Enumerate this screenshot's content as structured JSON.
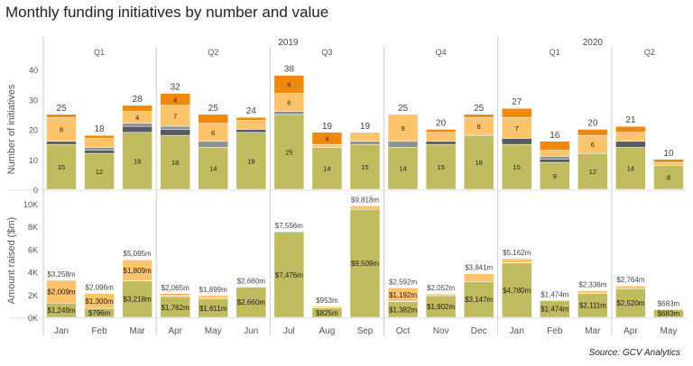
{
  "chart_data": {
    "type": "bar",
    "title": "Monthly funding initiatives by number and value",
    "source": "Source: GCV Analytics",
    "colors": [
      "#bfbb5e",
      "#555a63",
      "#8a8f98",
      "#fdc46b",
      "#f0880c"
    ],
    "years": [
      {
        "label": "2019",
        "months": 12
      },
      {
        "label": "2020",
        "months": 5
      }
    ],
    "quarters": [
      {
        "label": "Q1",
        "months": 3
      },
      {
        "label": "Q2",
        "months": 3
      },
      {
        "label": "Q3",
        "months": 3
      },
      {
        "label": "Q4",
        "months": 3
      },
      {
        "label": "Q1",
        "months": 3
      },
      {
        "label": "Q2",
        "months": 2
      }
    ],
    "categories": [
      "Jan",
      "Feb",
      "Mar",
      "Apr",
      "May",
      "Jun",
      "Jul",
      "Aug",
      "Sep",
      "Oct",
      "Nov",
      "Dec",
      "Jan",
      "Feb",
      "Mar",
      "Apr",
      "May"
    ],
    "panels": [
      {
        "ylabel": "Number of initiatives",
        "ylim": [
          0,
          45
        ],
        "ticks": [
          0,
          10,
          20,
          30,
          40
        ],
        "tick_labels": [
          "0",
          "10",
          "20",
          "30",
          "40"
        ],
        "totals": [
          25,
          18,
          28,
          32,
          25,
          24,
          38,
          19,
          19,
          25,
          20,
          25,
          27,
          16,
          20,
          21,
          10
        ],
        "total_labels": [
          "25",
          "18",
          "28",
          "32",
          "25",
          "24",
          "38",
          "19",
          "19",
          "25",
          "20",
          "25",
          "27",
          "16",
          "20",
          "21",
          "10"
        ],
        "stacks": [
          [
            15,
            1,
            0,
            8,
            1
          ],
          [
            12,
            1,
            1,
            3,
            1
          ],
          [
            19,
            2,
            1,
            4,
            2
          ],
          [
            18,
            2,
            1,
            7,
            4
          ],
          [
            14,
            0,
            2,
            6,
            3
          ],
          [
            19,
            1,
            0,
            3,
            1
          ],
          [
            25,
            0,
            1,
            6,
            6
          ],
          [
            14,
            0,
            0,
            1,
            4
          ],
          [
            15,
            0,
            1,
            3,
            0
          ],
          [
            14,
            0,
            2,
            9,
            0
          ],
          [
            15,
            1,
            0,
            3,
            1
          ],
          [
            18,
            0,
            0,
            6,
            1
          ],
          [
            15,
            2,
            0,
            7,
            3
          ],
          [
            9,
            1,
            1,
            2,
            3
          ],
          [
            12,
            0,
            0,
            6,
            2
          ],
          [
            14,
            2,
            0,
            3,
            2
          ],
          [
            8,
            0,
            0,
            1,
            1
          ]
        ],
        "segment_labels": [
          [
            "15",
            null,
            null,
            "8",
            null
          ],
          [
            "12",
            null,
            null,
            null,
            null
          ],
          [
            "19",
            null,
            null,
            "4",
            null
          ],
          [
            "18",
            null,
            null,
            "7",
            "4"
          ],
          [
            "14",
            null,
            null,
            "6",
            null
          ],
          [
            "19",
            null,
            null,
            null,
            null
          ],
          [
            "25",
            null,
            null,
            "6",
            "6"
          ],
          [
            "14",
            null,
            null,
            null,
            "4"
          ],
          [
            "15",
            null,
            null,
            null,
            null
          ],
          [
            "14",
            null,
            null,
            "9",
            null
          ],
          [
            "15",
            null,
            null,
            null,
            null
          ],
          [
            "18",
            null,
            null,
            "6",
            null
          ],
          [
            "15",
            null,
            null,
            "7",
            null
          ],
          [
            "9",
            null,
            null,
            null,
            null
          ],
          [
            "12",
            null,
            null,
            "6",
            null
          ],
          [
            "14",
            null,
            null,
            null,
            null
          ],
          [
            "8",
            null,
            null,
            null,
            null
          ]
        ]
      },
      {
        "ylabel": "Amount raised ($m)",
        "ylim": [
          0,
          11000
        ],
        "ticks": [
          0,
          2000,
          4000,
          6000,
          8000,
          10000
        ],
        "tick_labels": [
          "0K",
          "2K",
          "4K",
          "6K",
          "8K",
          "10K"
        ],
        "totals": [
          3258,
          2096,
          5095,
          2065,
          1899,
          2660,
          7556,
          953,
          9818,
          2592,
          2052,
          3841,
          5162,
          1474,
          2336,
          2764,
          683
        ],
        "total_labels": [
          "$3,258m",
          "$2,096m",
          "$5,095m",
          "$2,065m",
          "$1,899m",
          "$2,660m",
          "$7,556m",
          "$953m",
          "$9,818m",
          "$2,592m",
          "$2,052m",
          "$3,841m",
          "$5,162m",
          "$1,474m",
          "$2,336m",
          "$2,764m",
          "$683m"
        ],
        "stacks": [
          [
            1249,
            0,
            0,
            2009,
            0
          ],
          [
            796,
            0,
            0,
            1300,
            0
          ],
          [
            3218,
            0,
            20,
            1809,
            48
          ],
          [
            1762,
            0,
            100,
            100,
            103
          ],
          [
            1611,
            0,
            0,
            200,
            88
          ],
          [
            2660,
            0,
            0,
            0,
            0
          ],
          [
            7476,
            0,
            0,
            0,
            80
          ],
          [
            825,
            0,
            0,
            128,
            0
          ],
          [
            9509,
            0,
            0,
            309,
            0
          ],
          [
            1382,
            0,
            18,
            1192,
            0
          ],
          [
            1902,
            0,
            0,
            150,
            0
          ],
          [
            3147,
            0,
            0,
            694,
            0
          ],
          [
            4780,
            30,
            0,
            352,
            0
          ],
          [
            1474,
            0,
            0,
            0,
            0
          ],
          [
            2111,
            0,
            0,
            125,
            100
          ],
          [
            2520,
            0,
            20,
            224,
            0
          ],
          [
            683,
            0,
            0,
            0,
            0
          ]
        ],
        "segment_labels": [
          [
            "$1,249m",
            null,
            null,
            "$2,009m",
            null
          ],
          [
            "$796m",
            null,
            null,
            "$1,300m",
            null
          ],
          [
            "$3,218m",
            null,
            null,
            "$1,809m",
            null
          ],
          [
            "$1,762m",
            null,
            null,
            null,
            null
          ],
          [
            "$1,611m",
            null,
            null,
            null,
            null
          ],
          [
            "$2,660m",
            null,
            null,
            null,
            null
          ],
          [
            "$7,476m",
            null,
            null,
            null,
            null
          ],
          [
            "$825m",
            null,
            null,
            null,
            null
          ],
          [
            "$9,509m",
            null,
            null,
            null,
            null
          ],
          [
            "$1,382m",
            null,
            null,
            "$1,192m",
            null
          ],
          [
            "$1,902m",
            null,
            null,
            null,
            null
          ],
          [
            "$3,147m",
            null,
            null,
            null,
            null
          ],
          [
            "$4,780m",
            null,
            null,
            null,
            null
          ],
          [
            "$1,474m",
            null,
            null,
            null,
            null
          ],
          [
            "$2,111m",
            null,
            null,
            null,
            null
          ],
          [
            "$2,520m",
            null,
            null,
            null,
            null
          ],
          [
            "$683m",
            null,
            null,
            null,
            null
          ]
        ]
      }
    ]
  }
}
